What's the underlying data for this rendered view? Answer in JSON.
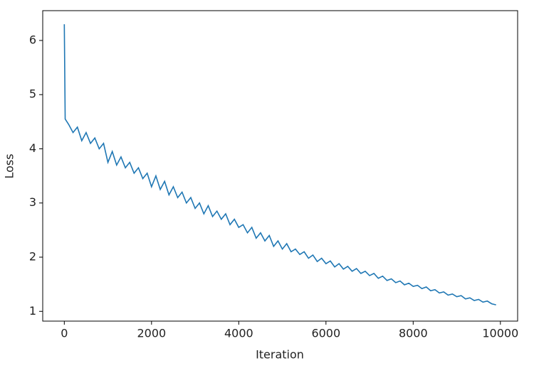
{
  "chart_data": {
    "type": "line",
    "x_label": "Iteration",
    "y_label": "Loss",
    "x": [
      0,
      20,
      100,
      200,
      300,
      400,
      500,
      600,
      700,
      800,
      900,
      1000,
      1100,
      1200,
      1300,
      1400,
      1500,
      1600,
      1700,
      1800,
      1900,
      2000,
      2100,
      2200,
      2300,
      2400,
      2500,
      2600,
      2700,
      2800,
      2900,
      3000,
      3100,
      3200,
      3300,
      3400,
      3500,
      3600,
      3700,
      3800,
      3900,
      4000,
      4100,
      4200,
      4300,
      4400,
      4500,
      4600,
      4700,
      4800,
      4900,
      5000,
      5100,
      5200,
      5300,
      5400,
      5500,
      5600,
      5700,
      5800,
      5900,
      6000,
      6100,
      6200,
      6300,
      6400,
      6500,
      6600,
      6700,
      6800,
      6900,
      7000,
      7100,
      7200,
      7300,
      7400,
      7500,
      7600,
      7700,
      7800,
      7900,
      8000,
      8100,
      8200,
      8300,
      8400,
      8500,
      8600,
      8700,
      8800,
      8900,
      9000,
      9100,
      9200,
      9300,
      9400,
      9500,
      9600,
      9700,
      9800,
      9900
    ],
    "series": [
      {
        "color": "#1f77b4",
        "values": [
          6.3,
          4.55,
          4.45,
          4.3,
          4.4,
          4.15,
          4.3,
          4.1,
          4.2,
          4.0,
          4.1,
          3.75,
          3.95,
          3.7,
          3.85,
          3.65,
          3.75,
          3.55,
          3.65,
          3.45,
          3.55,
          3.3,
          3.5,
          3.25,
          3.4,
          3.15,
          3.3,
          3.1,
          3.2,
          3.0,
          3.1,
          2.9,
          3.0,
          2.8,
          2.95,
          2.75,
          2.85,
          2.7,
          2.8,
          2.6,
          2.7,
          2.55,
          2.6,
          2.45,
          2.55,
          2.35,
          2.45,
          2.3,
          2.4,
          2.2,
          2.3,
          2.15,
          2.25,
          2.1,
          2.15,
          2.05,
          2.1,
          1.98,
          2.04,
          1.92,
          1.98,
          1.88,
          1.93,
          1.82,
          1.88,
          1.78,
          1.83,
          1.74,
          1.79,
          1.7,
          1.74,
          1.66,
          1.7,
          1.61,
          1.65,
          1.57,
          1.6,
          1.53,
          1.56,
          1.49,
          1.52,
          1.46,
          1.48,
          1.42,
          1.45,
          1.38,
          1.4,
          1.34,
          1.36,
          1.3,
          1.32,
          1.27,
          1.29,
          1.23,
          1.25,
          1.2,
          1.22,
          1.17,
          1.19,
          1.14,
          1.12
        ]
      }
    ],
    "xlim": [
      -495,
      10395
    ],
    "ylim": [
      0.82,
      6.55
    ],
    "xticks": [
      0,
      2000,
      4000,
      6000,
      8000,
      10000
    ],
    "yticks": [
      1,
      2,
      3,
      4,
      5,
      6
    ]
  }
}
